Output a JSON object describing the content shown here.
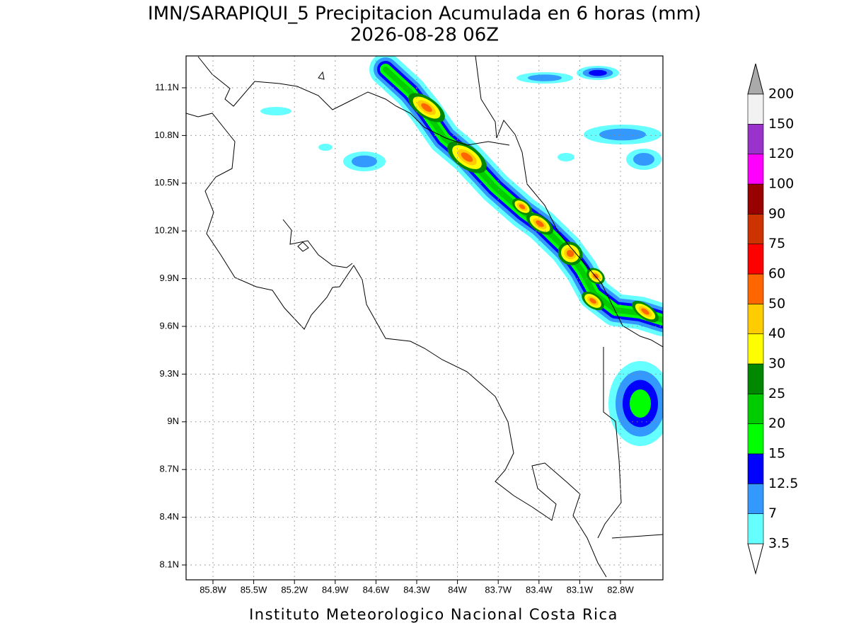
{
  "title": "IMN/SARAPIQUI_5 Precipitacion Acumulada en 6 horas (mm)",
  "subtitle": "2026-08-28 06Z",
  "lat_labels": [
    "11.1N",
    "10.8N",
    "10.5N",
    "10.2N",
    "9.9N",
    "9.6N",
    "9.3N",
    "9N",
    "8.7N",
    "8.4N",
    "8.1N"
  ],
  "lon_labels": [
    "85.8W",
    "85.5W",
    "85.2W",
    "84.9W",
    "84.6W",
    "84.3W",
    "84W",
    "83.7W",
    "83.4W",
    "83.1W",
    "82.8W"
  ],
  "colorbar": {
    "labels": [
      "3.5",
      "7",
      "12.5",
      "15",
      "20",
      "25",
      "30",
      "40",
      "50",
      "60",
      "75",
      "90",
      "100",
      "120",
      "150",
      "200"
    ],
    "colors": [
      "#66ffff",
      "#3399ff",
      "#0000ff",
      "#00ff00",
      "#00cc00",
      "#008800",
      "#ffff00",
      "#ffcc00",
      "#ff6600",
      "#ff0000",
      "#cc3300",
      "#990000",
      "#ff00ff",
      "#9933cc",
      "#f2f2f2"
    ]
  },
  "footer": "Instituto Meteorologico Nacional Costa Rica"
}
